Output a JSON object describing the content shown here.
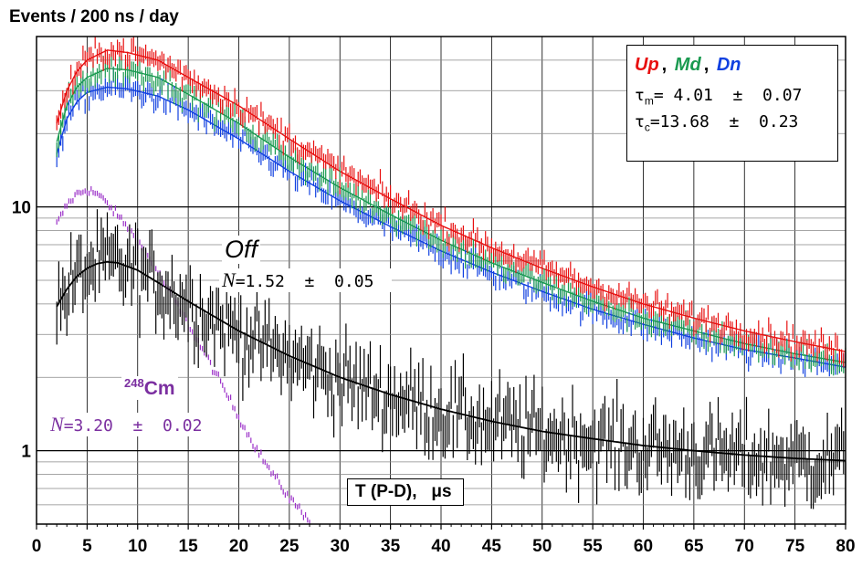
{
  "chart_data": {
    "type": "line",
    "title": "",
    "ylabel": "Events / 200 ns / day",
    "xlabel": "T (P-D),   μs",
    "yscale": "log",
    "xlim": [
      0,
      80
    ],
    "ylim": [
      0.5,
      50
    ],
    "grid": true,
    "x_ticks": [
      "0",
      "5",
      "10",
      "15",
      "20",
      "25",
      "30",
      "35",
      "40",
      "45",
      "50",
      "55",
      "60",
      "65",
      "70",
      "75",
      "80"
    ],
    "y_ticks": [
      {
        "value": 10,
        "label": "10"
      },
      {
        "value": 1,
        "label": "1"
      }
    ],
    "legend": {
      "position": "top-right",
      "entries": [
        {
          "name": "Up",
          "color": "#e81010"
        },
        {
          "name": "Md",
          "color": "#1a9a50"
        },
        {
          "name": "Dn",
          "color": "#1040e0"
        }
      ],
      "tau_m_label": "m",
      "tau_m_value": "= 4.01  ±  0.07",
      "tau_c_label": "c",
      "tau_c_value": "=13.68  ±  0.23",
      "separator": ","
    },
    "series": [
      {
        "name": "Up",
        "color": "#e81010",
        "points": [
          [
            2,
            22
          ],
          [
            3,
            30
          ],
          [
            4,
            36
          ],
          [
            5,
            40
          ],
          [
            7,
            44
          ],
          [
            9,
            43
          ],
          [
            12,
            40
          ],
          [
            15,
            34
          ],
          [
            20,
            26
          ],
          [
            25,
            19
          ],
          [
            30,
            14
          ],
          [
            35,
            10.8
          ],
          [
            40,
            8.4
          ],
          [
            45,
            6.8
          ],
          [
            50,
            5.6
          ],
          [
            55,
            4.7
          ],
          [
            60,
            4.0
          ],
          [
            65,
            3.5
          ],
          [
            70,
            3.1
          ],
          [
            75,
            2.8
          ],
          [
            80,
            2.55
          ]
        ]
      },
      {
        "name": "Md",
        "color": "#1a9a50",
        "points": [
          [
            2,
            18.5
          ],
          [
            3,
            26
          ],
          [
            4,
            31
          ],
          [
            5,
            34
          ],
          [
            7,
            37
          ],
          [
            9,
            36.5
          ],
          [
            12,
            34
          ],
          [
            15,
            29
          ],
          [
            20,
            22
          ],
          [
            25,
            16
          ],
          [
            30,
            12
          ],
          [
            35,
            9.3
          ],
          [
            40,
            7.3
          ],
          [
            45,
            5.9
          ],
          [
            50,
            4.9
          ],
          [
            55,
            4.1
          ],
          [
            60,
            3.5
          ],
          [
            65,
            3.1
          ],
          [
            70,
            2.75
          ],
          [
            75,
            2.5
          ],
          [
            80,
            2.3
          ]
        ]
      },
      {
        "name": "Dn",
        "color": "#1040e0",
        "points": [
          [
            2,
            16.5
          ],
          [
            3,
            23
          ],
          [
            4,
            27
          ],
          [
            5,
            29.5
          ],
          [
            7,
            31
          ],
          [
            9,
            30.5
          ],
          [
            12,
            28.5
          ],
          [
            15,
            25
          ],
          [
            20,
            19
          ],
          [
            25,
            14
          ],
          [
            30,
            10.6
          ],
          [
            35,
            8.3
          ],
          [
            40,
            6.6
          ],
          [
            45,
            5.4
          ],
          [
            50,
            4.5
          ],
          [
            55,
            3.8
          ],
          [
            60,
            3.3
          ],
          [
            65,
            2.9
          ],
          [
            70,
            2.6
          ],
          [
            75,
            2.4
          ],
          [
            80,
            2.2
          ]
        ]
      },
      {
        "name": "Off",
        "color": "#000000",
        "points": [
          [
            2,
            3.9
          ],
          [
            3,
            4.6
          ],
          [
            4,
            5.2
          ],
          [
            5,
            5.6
          ],
          [
            6,
            5.85
          ],
          [
            7,
            5.95
          ],
          [
            8,
            5.9
          ],
          [
            10,
            5.5
          ],
          [
            12,
            4.9
          ],
          [
            15,
            4.1
          ],
          [
            20,
            3.1
          ],
          [
            25,
            2.45
          ],
          [
            30,
            2.0
          ],
          [
            35,
            1.7
          ],
          [
            40,
            1.48
          ],
          [
            45,
            1.32
          ],
          [
            50,
            1.2
          ],
          [
            55,
            1.12
          ],
          [
            60,
            1.05
          ],
          [
            65,
            1.0
          ],
          [
            70,
            0.96
          ],
          [
            75,
            0.93
          ],
          [
            80,
            0.91
          ]
        ]
      },
      {
        "name": "248Cm",
        "color": "#9b30c8",
        "points": [
          [
            2,
            8.5
          ],
          [
            3,
            10.2
          ],
          [
            4,
            11.3
          ],
          [
            5,
            11.8
          ],
          [
            6,
            11.3
          ],
          [
            7,
            10.3
          ],
          [
            9,
            8.3
          ],
          [
            11,
            6.3
          ],
          [
            13,
            4.6
          ],
          [
            15,
            3.3
          ],
          [
            17,
            2.35
          ],
          [
            19,
            1.65
          ],
          [
            21,
            1.15
          ],
          [
            23,
            0.84
          ],
          [
            25,
            0.64
          ],
          [
            27,
            0.52
          ]
        ]
      }
    ],
    "annotations": {
      "off_label": "Off",
      "off_n_symbol": "N",
      "off_n_value": "=1.52  ±  0.05",
      "cm_mass": "248",
      "cm_symbol": "Cm",
      "cm_n_symbol": "N",
      "cm_n_value": "=3.20  ±  0.02"
    }
  }
}
